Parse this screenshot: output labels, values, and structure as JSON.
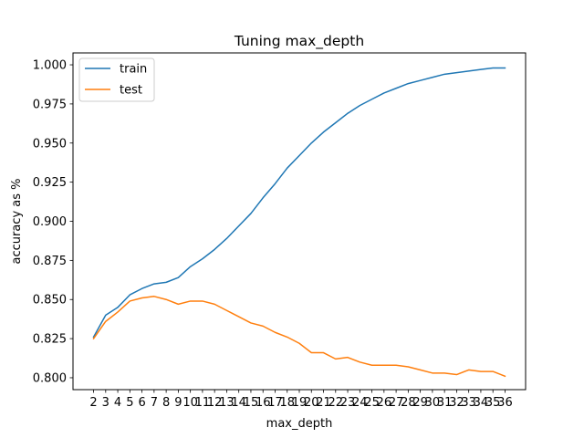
{
  "chart_data": {
    "type": "line",
    "title": "Tuning max_depth",
    "xlabel": "max_depth",
    "ylabel": "accuracy as %",
    "x": [
      2,
      3,
      4,
      5,
      6,
      7,
      8,
      9,
      10,
      11,
      12,
      13,
      14,
      15,
      16,
      17,
      18,
      19,
      20,
      21,
      22,
      23,
      24,
      25,
      26,
      27,
      28,
      29,
      30,
      31,
      32,
      33,
      34,
      35,
      36
    ],
    "xlim": [
      0.3,
      37.7
    ],
    "ylim": [
      0.7924,
      1.0076
    ],
    "yticks": [
      0.8,
      0.825,
      0.85,
      0.875,
      0.9,
      0.925,
      0.95,
      0.975,
      1.0
    ],
    "ytick_labels": [
      "0.800",
      "0.825",
      "0.850",
      "0.875",
      "0.900",
      "0.925",
      "0.950",
      "0.975",
      "1.000"
    ],
    "grid": false,
    "legend_position": "top-left",
    "series": [
      {
        "name": "train",
        "color": "#1f77b4",
        "values": [
          0.826,
          0.84,
          0.845,
          0.853,
          0.857,
          0.86,
          0.861,
          0.864,
          0.871,
          0.876,
          0.882,
          0.889,
          0.897,
          0.905,
          0.915,
          0.924,
          0.934,
          0.942,
          0.95,
          0.957,
          0.963,
          0.969,
          0.974,
          0.978,
          0.982,
          0.985,
          0.988,
          0.99,
          0.992,
          0.994,
          0.995,
          0.996,
          0.997,
          0.998,
          0.998
        ]
      },
      {
        "name": "test",
        "color": "#ff7f0e",
        "values": [
          0.825,
          0.836,
          0.842,
          0.849,
          0.851,
          0.852,
          0.85,
          0.847,
          0.849,
          0.849,
          0.847,
          0.843,
          0.839,
          0.835,
          0.833,
          0.829,
          0.826,
          0.822,
          0.816,
          0.816,
          0.812,
          0.813,
          0.81,
          0.808,
          0.808,
          0.808,
          0.807,
          0.805,
          0.803,
          0.803,
          0.802,
          0.805,
          0.804,
          0.804,
          0.801
        ]
      }
    ]
  }
}
